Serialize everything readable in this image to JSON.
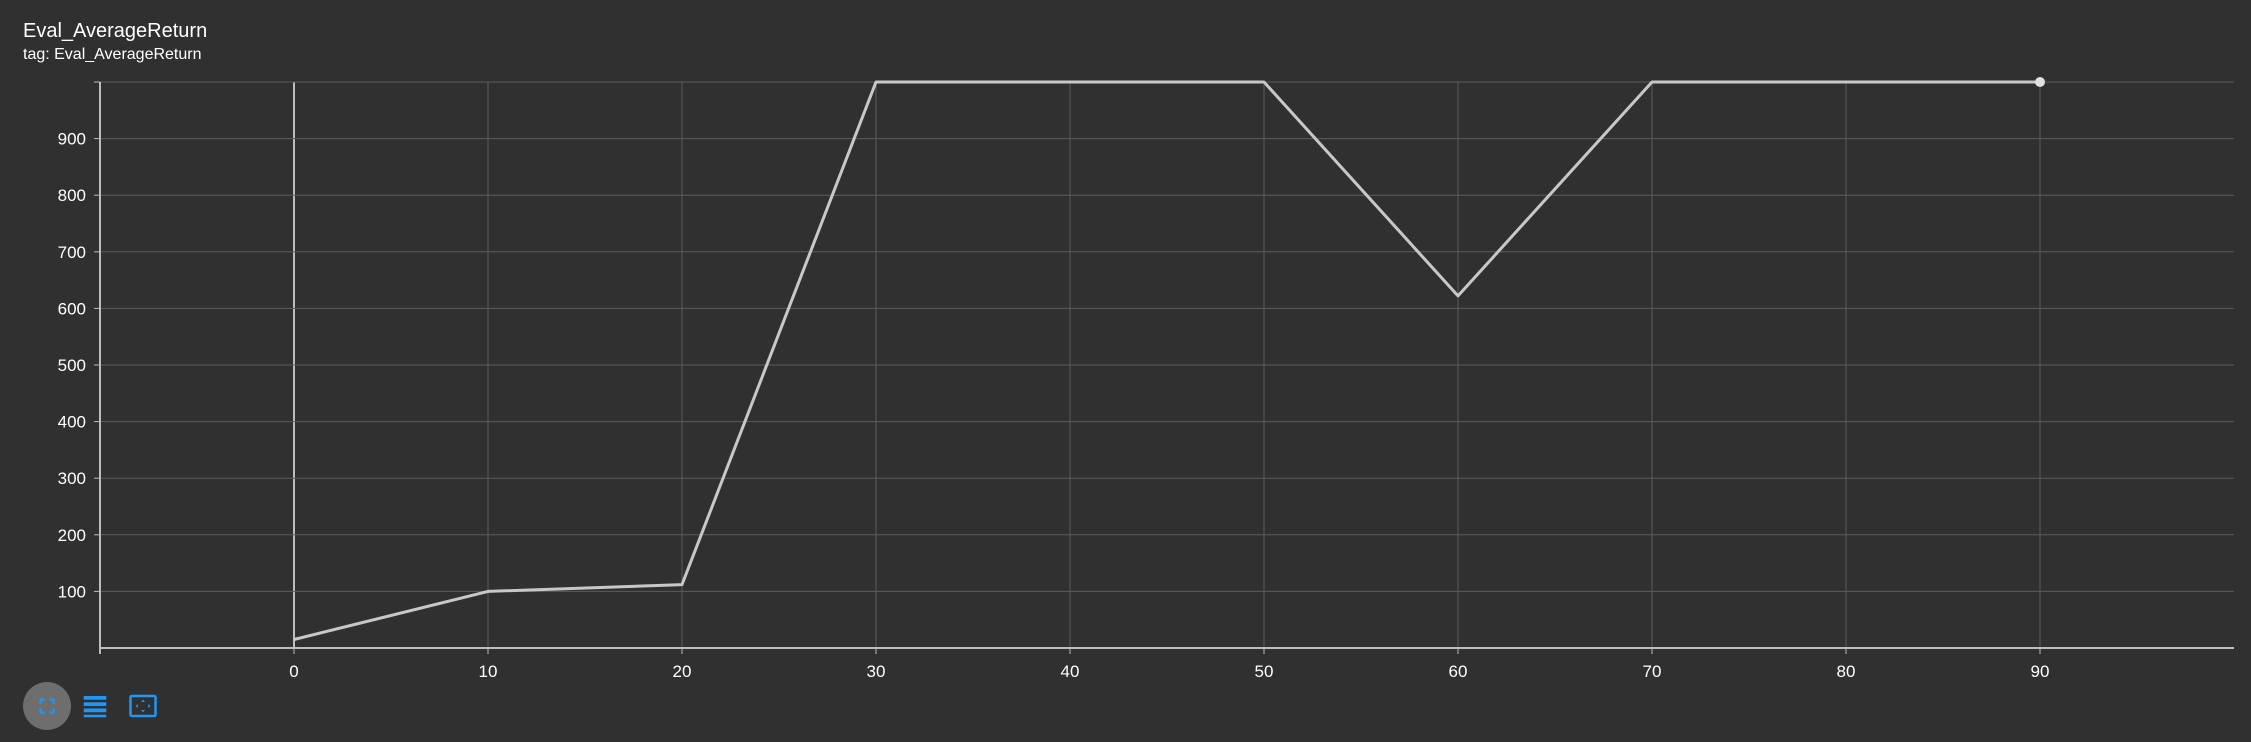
{
  "card": {
    "title": "Eval_AverageReturn",
    "tag_line": "tag: Eval_AverageReturn"
  },
  "toolbar": {
    "buttons": [
      {
        "icon": "fullscreen-icon",
        "active": true
      },
      {
        "icon": "data-table-icon",
        "active": false
      },
      {
        "icon": "fit-domain-icon",
        "active": false
      }
    ],
    "icon_color": "#2196f3"
  },
  "chart_data": {
    "type": "line",
    "title": "",
    "xlabel": "",
    "ylabel": "",
    "xlim": [
      -10,
      100
    ],
    "ylim": [
      0,
      1000
    ],
    "x_ticks": [
      0,
      10,
      20,
      30,
      40,
      50,
      60,
      70,
      80,
      90
    ],
    "y_ticks": [
      100,
      200,
      300,
      400,
      500,
      600,
      700,
      800,
      900
    ],
    "grid": true,
    "line_color": "#c8c8c8",
    "series": [
      {
        "x": [
          0,
          10,
          20,
          30,
          40,
          50,
          60,
          70,
          80,
          90
        ],
        "y": [
          15,
          100,
          112,
          1000,
          1000,
          1000,
          622,
          1000,
          1000,
          1000
        ]
      }
    ]
  }
}
